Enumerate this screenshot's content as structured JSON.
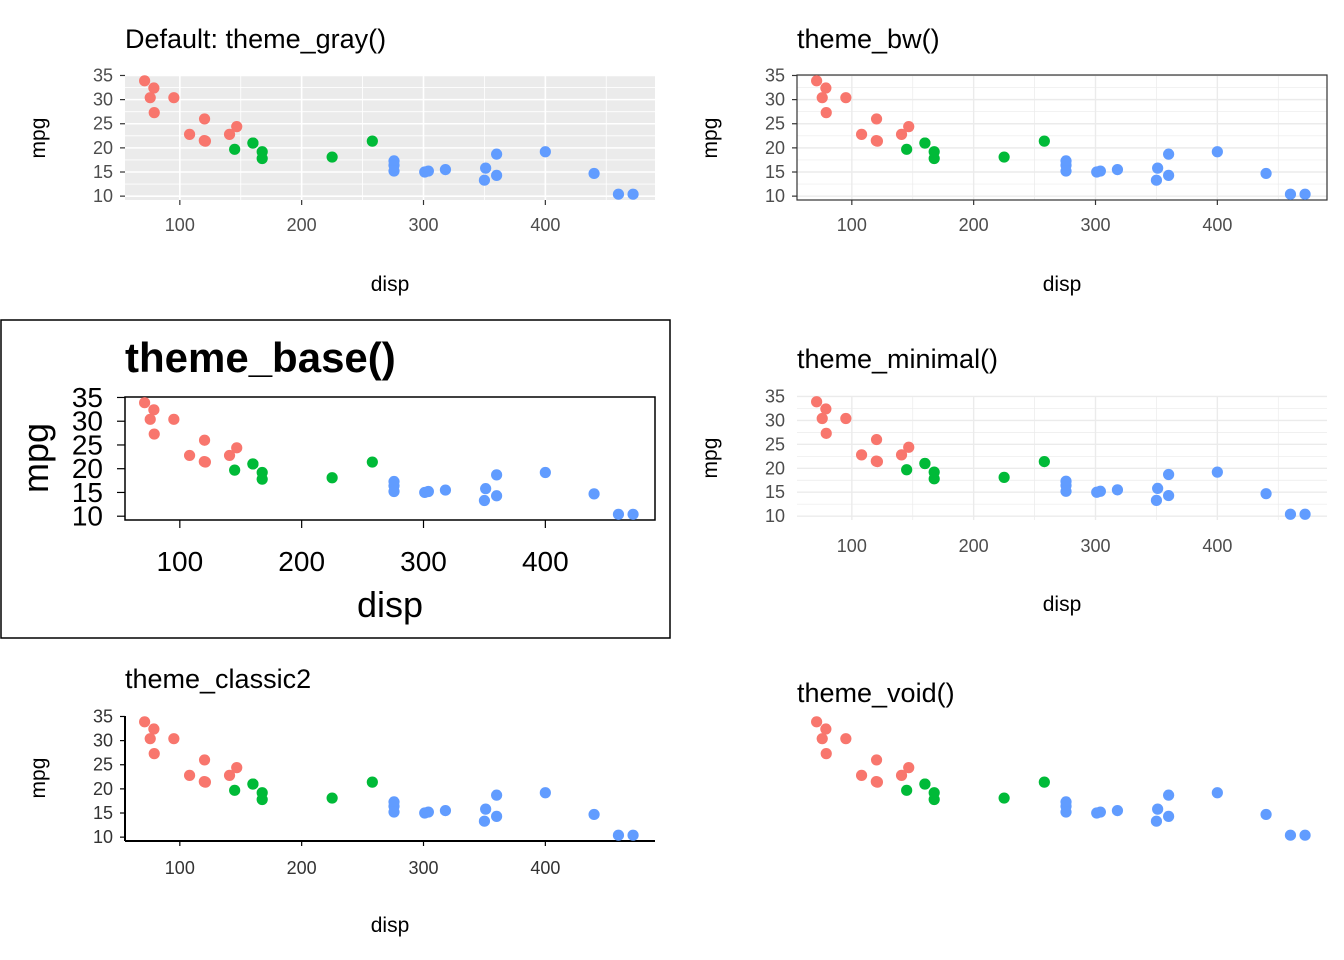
{
  "colors": {
    "red": "#F8766D",
    "green": "#00BA38",
    "blue": "#619CFF",
    "gray_panel": "#EBEBEB",
    "tick_text": "#4D4D4D",
    "grid_light": "#EBEBEB"
  },
  "dataset": {
    "x_name": "disp",
    "y_name": "mpg",
    "groups": [
      "red",
      "green",
      "blue"
    ],
    "points": [
      {
        "x": 160,
        "y": 21,
        "g": "green"
      },
      {
        "x": 160,
        "y": 21,
        "g": "green"
      },
      {
        "x": 108,
        "y": 22.8,
        "g": "red"
      },
      {
        "x": 258,
        "y": 21.4,
        "g": "green"
      },
      {
        "x": 360,
        "y": 18.7,
        "g": "blue"
      },
      {
        "x": 225,
        "y": 18.1,
        "g": "green"
      },
      {
        "x": 360,
        "y": 14.3,
        "g": "blue"
      },
      {
        "x": 146.7,
        "y": 24.4,
        "g": "red"
      },
      {
        "x": 140.8,
        "y": 22.8,
        "g": "red"
      },
      {
        "x": 167.6,
        "y": 19.2,
        "g": "green"
      },
      {
        "x": 167.6,
        "y": 17.8,
        "g": "green"
      },
      {
        "x": 275.8,
        "y": 16.4,
        "g": "blue"
      },
      {
        "x": 275.8,
        "y": 17.3,
        "g": "blue"
      },
      {
        "x": 275.8,
        "y": 15.2,
        "g": "blue"
      },
      {
        "x": 472,
        "y": 10.4,
        "g": "blue"
      },
      {
        "x": 460,
        "y": 10.4,
        "g": "blue"
      },
      {
        "x": 440,
        "y": 14.7,
        "g": "blue"
      },
      {
        "x": 78.7,
        "y": 32.4,
        "g": "red"
      },
      {
        "x": 75.7,
        "y": 30.4,
        "g": "red"
      },
      {
        "x": 71.1,
        "y": 33.9,
        "g": "red"
      },
      {
        "x": 120.1,
        "y": 21.5,
        "g": "red"
      },
      {
        "x": 318,
        "y": 15.5,
        "g": "blue"
      },
      {
        "x": 304,
        "y": 15.2,
        "g": "blue"
      },
      {
        "x": 350,
        "y": 13.3,
        "g": "blue"
      },
      {
        "x": 400,
        "y": 19.2,
        "g": "blue"
      },
      {
        "x": 79,
        "y": 27.3,
        "g": "red"
      },
      {
        "x": 120.3,
        "y": 26,
        "g": "red"
      },
      {
        "x": 95.1,
        "y": 30.4,
        "g": "red"
      },
      {
        "x": 351,
        "y": 15.8,
        "g": "blue"
      },
      {
        "x": 145,
        "y": 19.7,
        "g": "green"
      },
      {
        "x": 301,
        "y": 15,
        "g": "blue"
      },
      {
        "x": 121,
        "y": 21.4,
        "g": "red"
      }
    ]
  },
  "chart_data": [
    {
      "type": "scatter",
      "title": "Default: theme_gray()",
      "xlabel": "disp",
      "ylabel": "mpg",
      "xlim": [
        55,
        490
      ],
      "ylim": [
        9.2,
        35.1
      ],
      "xticks": [
        100,
        200,
        300,
        400
      ],
      "yticks": [
        10,
        15,
        20,
        25,
        30,
        35
      ],
      "grid": true,
      "theme": "gray"
    },
    {
      "type": "scatter",
      "title": "theme_bw()",
      "xlabel": "disp",
      "ylabel": "mpg",
      "xlim": [
        55,
        490
      ],
      "ylim": [
        9.2,
        35.1
      ],
      "xticks": [
        100,
        200,
        300,
        400
      ],
      "yticks": [
        10,
        15,
        20,
        25,
        30,
        35
      ],
      "grid": true,
      "theme": "bw"
    },
    {
      "type": "scatter",
      "title": "theme_base()",
      "xlabel": "disp",
      "ylabel": "mpg",
      "xlim": [
        55,
        490
      ],
      "ylim": [
        9.2,
        35.1
      ],
      "xticks": [
        100,
        200,
        300,
        400
      ],
      "yticks": [
        10,
        15,
        20,
        25,
        30,
        35
      ],
      "grid": false,
      "theme": "base"
    },
    {
      "type": "scatter",
      "title": "theme_minimal()",
      "xlabel": "disp",
      "ylabel": "mpg",
      "xlim": [
        55,
        490
      ],
      "ylim": [
        9.2,
        35.1
      ],
      "xticks": [
        100,
        200,
        300,
        400
      ],
      "yticks": [
        10,
        15,
        20,
        25,
        30,
        35
      ],
      "grid": true,
      "theme": "minimal"
    },
    {
      "type": "scatter",
      "title": "theme_classic2",
      "xlabel": "disp",
      "ylabel": "mpg",
      "xlim": [
        55,
        490
      ],
      "ylim": [
        9.2,
        35.1
      ],
      "xticks": [
        100,
        200,
        300,
        400
      ],
      "yticks": [
        10,
        15,
        20,
        25,
        30,
        35
      ],
      "grid": false,
      "theme": "classic2"
    },
    {
      "type": "scatter",
      "title": "theme_void()",
      "xlabel": "",
      "ylabel": "",
      "xlim": [
        55,
        490
      ],
      "ylim": [
        9.2,
        35.1
      ],
      "xticks": [],
      "yticks": [],
      "grid": false,
      "theme": "void"
    }
  ]
}
